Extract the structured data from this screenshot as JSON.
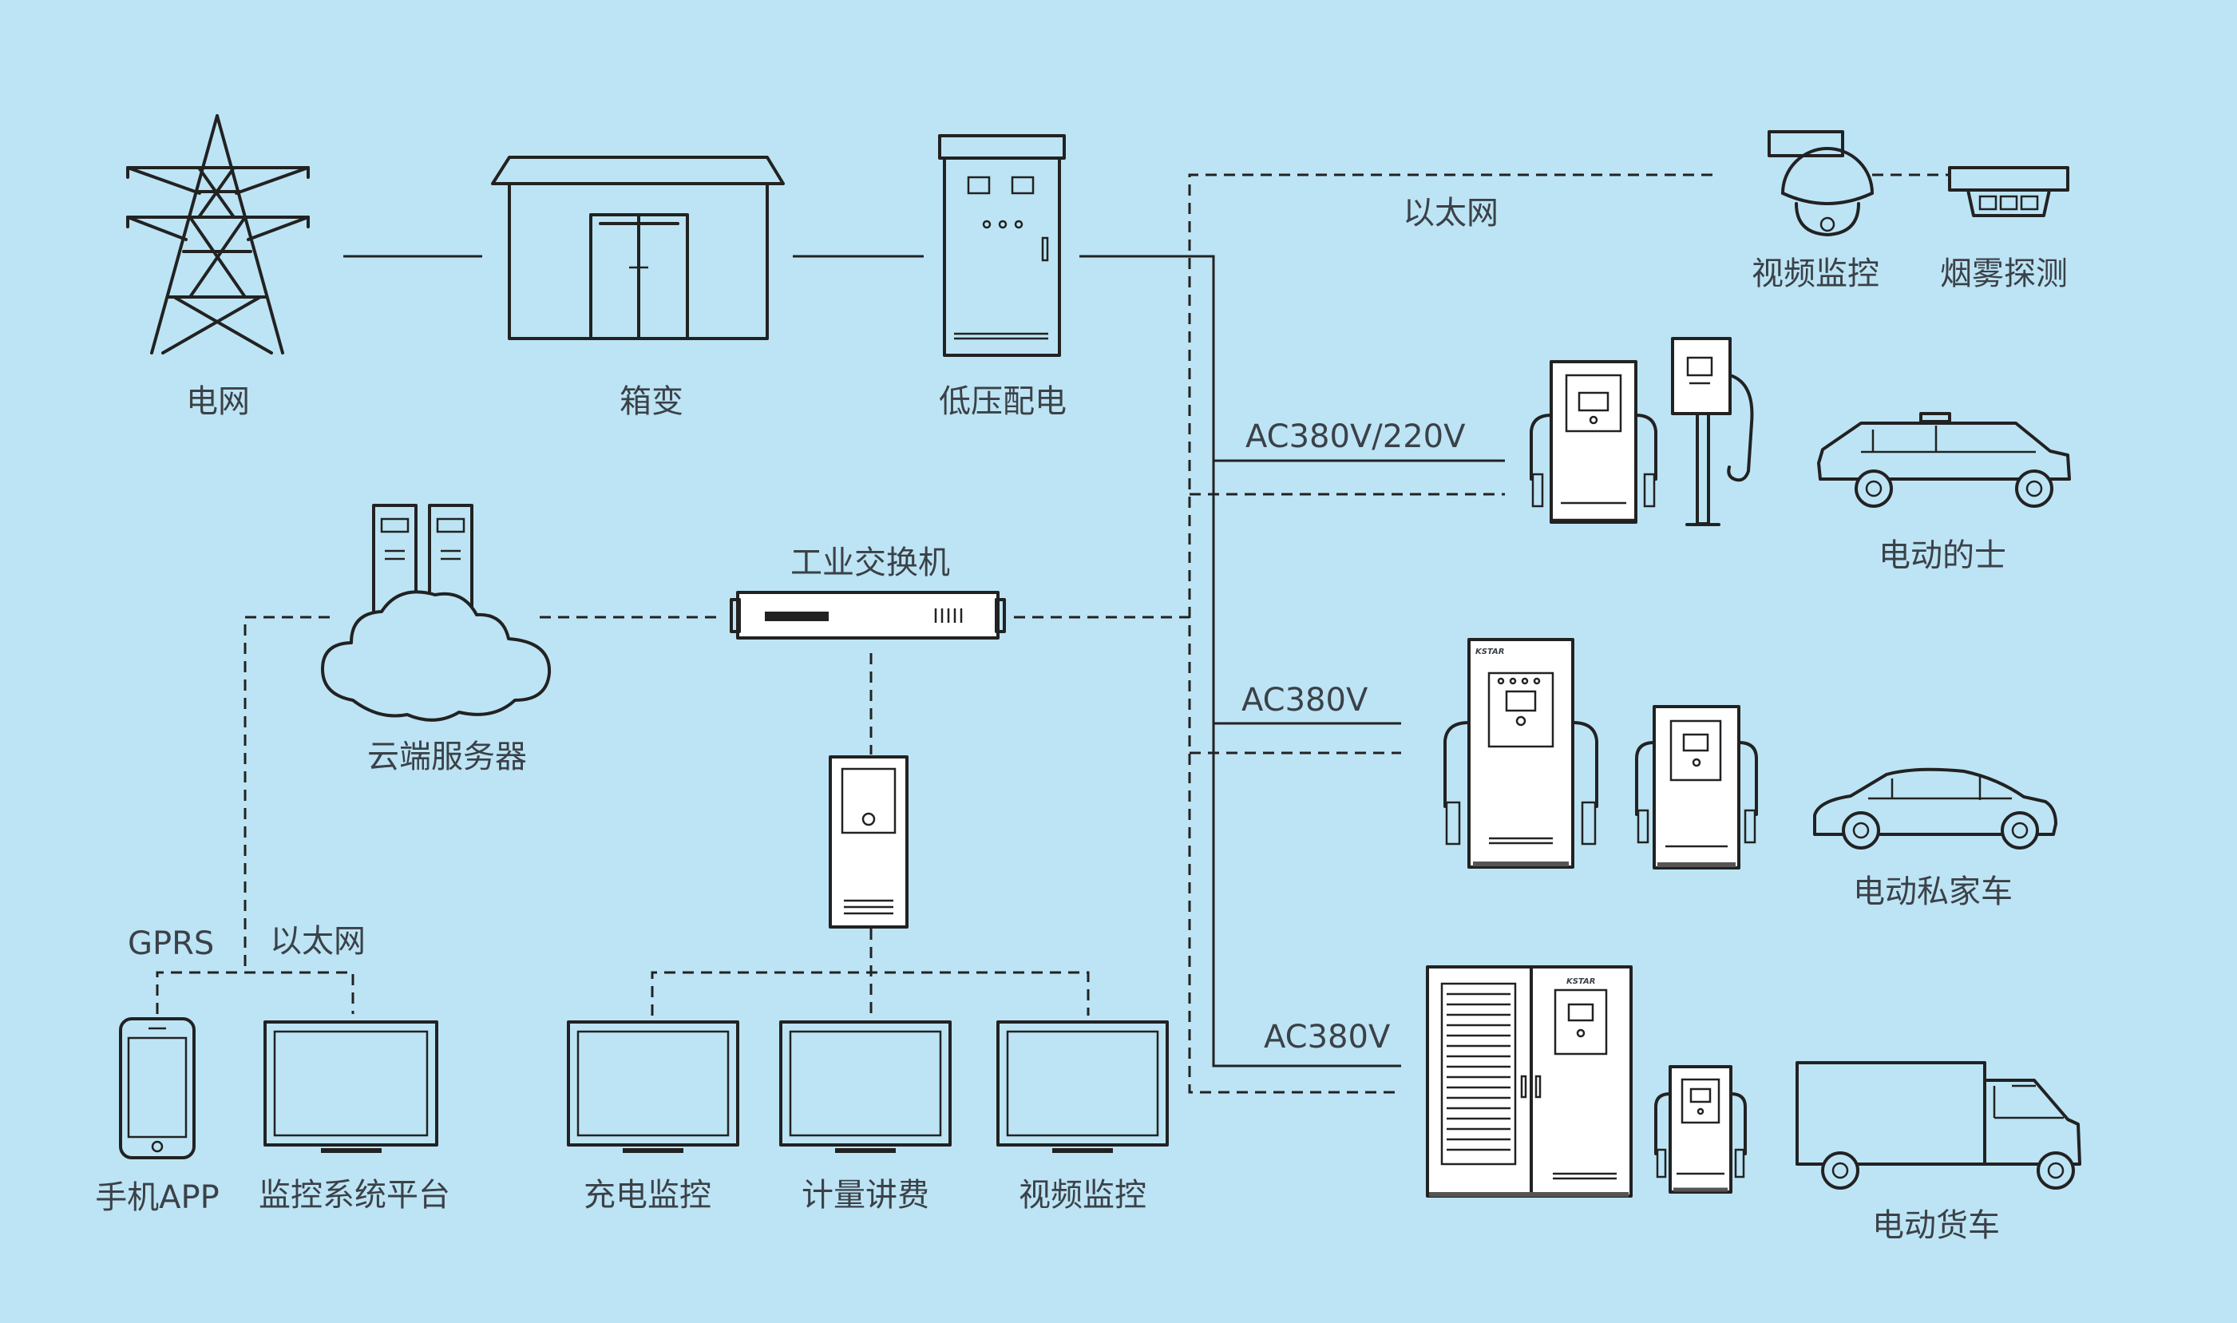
{
  "colors": {
    "background": "#bde4f4",
    "line": "#222222",
    "text": "#3b4148"
  },
  "labels": {
    "grid": "电网",
    "box_transformer": "箱变",
    "low_voltage_distribution": "低压配电",
    "ethernet_top": "以太网",
    "video_surveillance_top": "视频监控",
    "smoke_detection": "烟雾探测",
    "ac380_220": "AC380V/220V",
    "electric_taxi": "电动的士",
    "industrial_switch": "工业交换机",
    "cloud_server": "云端服务器",
    "ac380_mid": "AC380V",
    "electric_private_car": "电动私家车",
    "gprs": "GPRS",
    "ethernet_bottom": "以太网",
    "ac380_bottom": "AC380V",
    "mobile_app": "手机APP",
    "monitoring_platform": "监控系统平台",
    "charging_monitor": "充电监控",
    "metering_billing": "计量讲费",
    "video_surveillance_bottom": "视频监控",
    "electric_truck": "电动货车"
  },
  "brand_text": "KSTAR",
  "icons": [
    "transmission-tower",
    "box-transformer-house",
    "distribution-cabinet",
    "surveillance-camera",
    "smoke-detector",
    "charger-dual",
    "charging-post",
    "taxi",
    "server-cloud",
    "industrial-switch",
    "controller-cabinet",
    "charger-large",
    "private-car",
    "power-cabinet",
    "truck",
    "smartphone",
    "monitor"
  ]
}
